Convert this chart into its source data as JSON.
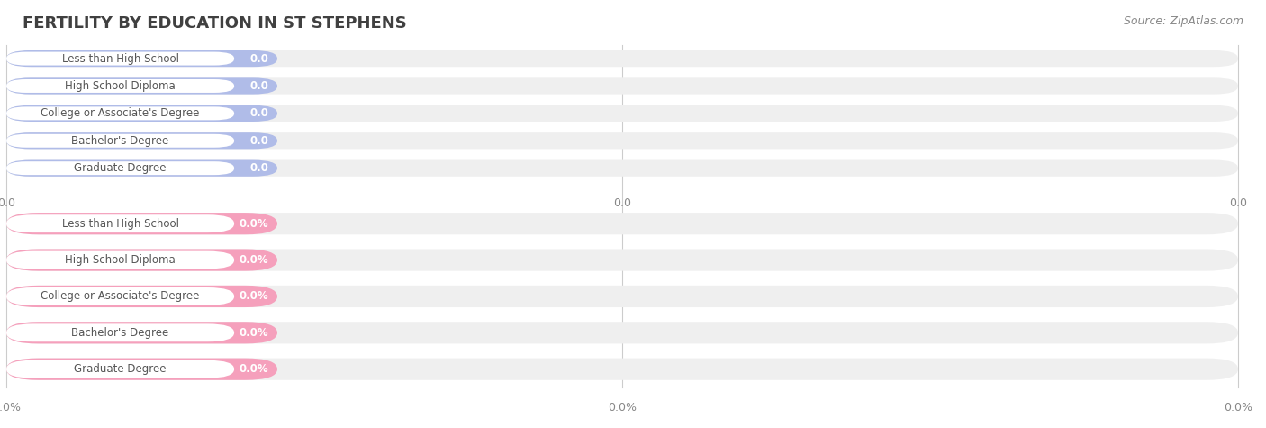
{
  "title": "FERTILITY BY EDUCATION IN ST STEPHENS",
  "source": "Source: ZipAtlas.com",
  "categories": [
    "Less than High School",
    "High School Diploma",
    "College or Associate's Degree",
    "Bachelor's Degree",
    "Graduate Degree"
  ],
  "top_values": [
    0.0,
    0.0,
    0.0,
    0.0,
    0.0
  ],
  "bottom_values": [
    0.0,
    0.0,
    0.0,
    0.0,
    0.0
  ],
  "top_color": "#b0bce8",
  "bottom_color": "#f5a0bc",
  "bg_bar_color": "#efefef",
  "title_color": "#404040",
  "source_color": "#888888",
  "label_text_color": "#555555",
  "value_text_color": "#ffffff",
  "top_tick_label": "0.0",
  "bottom_tick_label": "0.0%",
  "background_color": "#ffffff",
  "fig_width": 14.06,
  "fig_height": 4.75
}
